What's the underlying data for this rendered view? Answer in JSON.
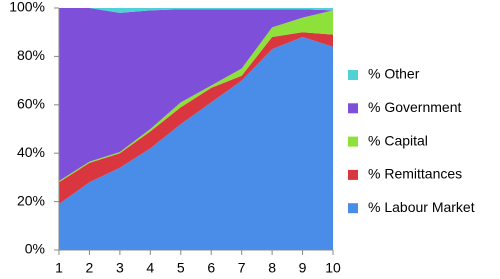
{
  "chart_data": {
    "type": "stacked_area",
    "x": [
      1,
      2,
      3,
      4,
      5,
      6,
      7,
      8,
      9,
      10
    ],
    "series": [
      {
        "name": "% Labour Market",
        "color": "#4a8de8",
        "values": [
          19,
          28,
          34,
          42,
          52,
          61,
          70,
          83,
          88,
          84
        ]
      },
      {
        "name": "% Remittances",
        "color": "#d9363f",
        "values": [
          9,
          8,
          6,
          7,
          7,
          6,
          2,
          5,
          2,
          5
        ]
      },
      {
        "name": "% Capital",
        "color": "#8ee03a",
        "values": [
          0.5,
          0.5,
          0.5,
          1,
          2,
          1,
          3,
          4,
          6,
          10
        ]
      },
      {
        "name": "% Government",
        "color": "#7e4fd8",
        "values": [
          71.5,
          63.5,
          57.5,
          49,
          38.5,
          31.5,
          24.5,
          7.5,
          3.5,
          0
        ]
      },
      {
        "name": "% Other",
        "color": "#4fd1d6",
        "values": [
          0,
          0,
          2,
          1,
          0.5,
          0.5,
          0.5,
          0.5,
          0.5,
          1
        ]
      }
    ],
    "xlim": [
      1,
      10
    ],
    "xticks": [
      1,
      2,
      3,
      4,
      5,
      6,
      7,
      8,
      9,
      10
    ],
    "ylim": [
      0,
      100
    ],
    "yticks": [
      {
        "value": 0,
        "label": "0%"
      },
      {
        "value": 20,
        "label": "20%"
      },
      {
        "value": 40,
        "label": "40%"
      },
      {
        "value": 60,
        "label": "60%"
      },
      {
        "value": 80,
        "label": "80%"
      },
      {
        "value": 100,
        "label": "100%"
      }
    ],
    "grid": false,
    "legend": "right"
  }
}
